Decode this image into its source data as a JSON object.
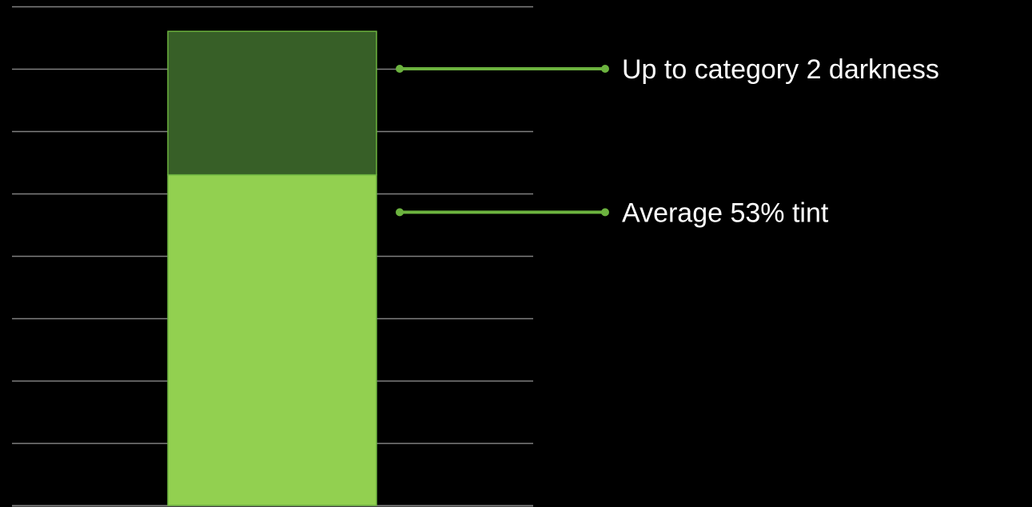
{
  "chart_data": {
    "type": "bar",
    "stacked": true,
    "categories": [
      ""
    ],
    "series": [
      {
        "values": [
          53
        ],
        "color": "#92d050"
      },
      {
        "values": [
          23
        ],
        "color": "#375f27"
      }
    ],
    "ylim": [
      0,
      80
    ],
    "grid": true,
    "grid_step": 10,
    "annotations": [
      {
        "text": "Up to category 2 darkness",
        "y": 70
      },
      {
        "text": "Average 53% tint",
        "y": 47
      }
    ],
    "colors": {
      "background": "#000000",
      "gridline": "#808080",
      "bar_border": "#6cb33f",
      "callout_line": "#6cb33f",
      "label_text": "#ffffff"
    }
  }
}
